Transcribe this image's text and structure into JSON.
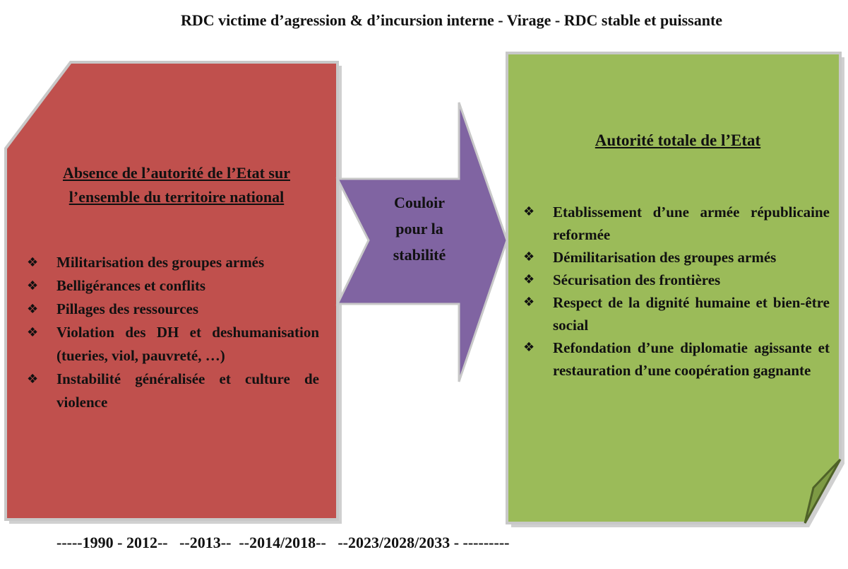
{
  "title": "RDC victime d’agression & d’incursion interne - Virage - RDC stable et puissante",
  "left": {
    "heading": "Absence de l’autorité de l’Etat sur l’ensemble du territoire national",
    "items": [
      "Militarisation des groupes armés",
      "Belligérances et conflits",
      "Pillages des ressources",
      "Violation des DH et deshumanisation (tueries, viol, pauvreté, …)",
      "Instabilité généralisée et culture de violence"
    ]
  },
  "arrow": {
    "label": "Couloir pour la stabilité"
  },
  "right": {
    "heading": "Autorité totale de l’Etat",
    "items": [
      "Etablissement d’une armée républicaine reformée",
      "Démilitarisation des groupes armés",
      "Sécurisation des frontières",
      "Respect de la dignité humaine et bien-être social",
      "Refondation d’une diplomatie agissante et restauration d’une coopération gagnante"
    ]
  },
  "timeline": "-----1990 - 2012--   --2013--  --2014/2018--   --2023/2028/2033 - ---------"
}
